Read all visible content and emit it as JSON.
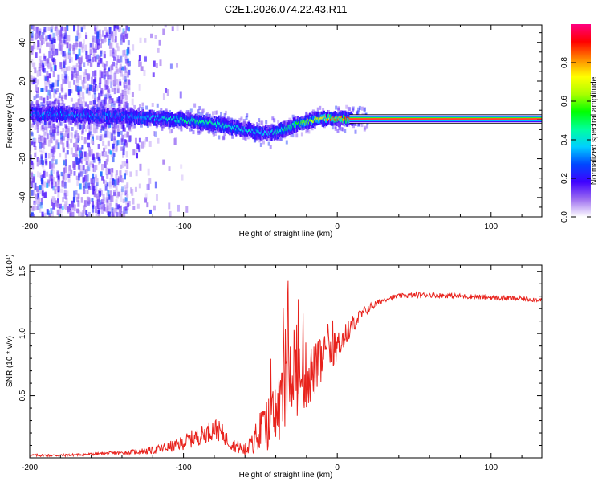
{
  "chart_data": [
    {
      "type": "heatmap",
      "title": "C2E1.2026.074.22.43.R11",
      "xlabel": "Height of straight line (km)",
      "ylabel": "Frequency (Hz)",
      "xlim": [
        -200,
        133
      ],
      "ylim": [
        -50,
        49
      ],
      "xticks": [
        -200,
        -100,
        0,
        100
      ],
      "xtick_labels": [
        "-200",
        "-100",
        "0",
        "100"
      ],
      "yticks": [
        -40,
        -20,
        0,
        20,
        40
      ],
      "ytick_labels": [
        "-40",
        "-20",
        "0",
        "20",
        "40"
      ],
      "colorbar": {
        "label": "Normalized spectral amplitude",
        "range": [
          0,
          1
        ],
        "ticks": [
          0.0,
          0.2,
          0.4,
          0.6,
          0.8
        ],
        "tick_labels": [
          "0.0",
          "0.2",
          "0.4",
          "0.6",
          "0.8"
        ],
        "colormap": [
          "#ffffff",
          "#9d6ff0",
          "#3f00ff",
          "#0047ff",
          "#00cfff",
          "#00ff9f",
          "#00ff00",
          "#aaff00",
          "#ffff00",
          "#ff8800",
          "#ff0000",
          "#ff0080"
        ]
      },
      "ridge": {
        "x": [
          -200,
          -180,
          -160,
          -140,
          -120,
          -100,
          -80,
          -60,
          -45,
          -35,
          -25,
          -15,
          -5,
          5,
          20,
          60,
          100,
          133
        ],
        "freq": [
          3,
          3,
          2,
          2,
          1,
          0,
          -2,
          -5,
          -7,
          -5,
          -2,
          0,
          1,
          0.5,
          0.5,
          0.5,
          0.5,
          0.5
        ],
        "amplitude": [
          0.3,
          0.3,
          0.3,
          0.28,
          0.35,
          0.45,
          0.45,
          0.38,
          0.35,
          0.45,
          0.55,
          0.65,
          0.8,
          0.85,
          0.9,
          0.9,
          0.9,
          0.9
        ]
      },
      "scatter_noise_region_x": [
        -200,
        -135
      ]
    },
    {
      "type": "line",
      "xlabel": "Height of straight line (km)",
      "ylabel": "SNR (10 * v/v)",
      "scale_label": "(x10⁴)",
      "xlim": [
        -200,
        133
      ],
      "ylim": [
        0,
        1.55
      ],
      "xticks": [
        -200,
        -100,
        0,
        100
      ],
      "xtick_labels": [
        "-200",
        "-100",
        "0",
        "100"
      ],
      "yticks": [
        0.5,
        1.0,
        1.5
      ],
      "ytick_labels": [
        "0.5",
        "1.0",
        "1.5"
      ],
      "color": "#e8221c",
      "series": [
        {
          "name": "SNR",
          "x": [
            -200,
            -180,
            -160,
            -140,
            -120,
            -105,
            -95,
            -85,
            -80,
            -75,
            -70,
            -60,
            -55,
            -50,
            -45,
            -40,
            -36,
            -32,
            -30,
            -28,
            -25,
            -20,
            -15,
            -10,
            -5,
            0,
            5,
            10,
            20,
            30,
            35,
            40,
            50,
            60,
            80,
            100,
            120,
            133
          ],
          "values": [
            0.02,
            0.02,
            0.03,
            0.04,
            0.06,
            0.1,
            0.15,
            0.2,
            0.24,
            0.2,
            0.12,
            0.06,
            0.1,
            0.18,
            0.28,
            0.35,
            0.45,
            0.7,
            0.8,
            0.75,
            0.62,
            0.66,
            0.7,
            0.78,
            0.85,
            0.9,
            0.98,
            1.08,
            1.2,
            1.27,
            1.29,
            1.3,
            1.31,
            1.31,
            1.3,
            1.29,
            1.28,
            1.27
          ],
          "noise": [
            0.01,
            0.01,
            0.01,
            0.015,
            0.03,
            0.05,
            0.07,
            0.08,
            0.09,
            0.08,
            0.05,
            0.06,
            0.1,
            0.15,
            0.22,
            0.28,
            0.35,
            0.4,
            0.42,
            0.4,
            0.3,
            0.28,
            0.22,
            0.2,
            0.15,
            0.12,
            0.1,
            0.07,
            0.04,
            0.02,
            0.02,
            0.02,
            0.02,
            0.02,
            0.02,
            0.02,
            0.02,
            0.02
          ]
        }
      ]
    }
  ]
}
